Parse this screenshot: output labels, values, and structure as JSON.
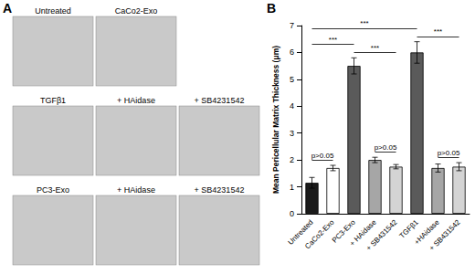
{
  "figure": {
    "panel_labels": [
      "A",
      "B"
    ],
    "image_rows": [
      [
        "Untreated",
        "CaCo2-Exo"
      ],
      [
        "TGFβ1",
        "+ HAidase",
        "+ SB4231542"
      ],
      [
        "PC3-Exo",
        "+ HAidase",
        "+ SB4231542"
      ]
    ]
  },
  "chart_data": {
    "type": "bar",
    "y_label": "Mean Pericellular Matrix Thickness (μm)",
    "categories": [
      "Untreated",
      "CaCo2-Exo",
      "PC3-Exo",
      "+ HAidase",
      "+ SB431542",
      "TGFβ1",
      "+HAidase",
      "+ SB431542"
    ],
    "values": [
      1.15,
      1.7,
      5.5,
      2.0,
      1.75,
      6.0,
      1.7,
      1.75
    ],
    "errors": [
      0.2,
      0.1,
      0.3,
      0.1,
      0.08,
      0.4,
      0.15,
      0.15
    ],
    "colors": [
      "#1a1a1a",
      "#ffffff",
      "#5a5a5a",
      "#a6a6a6",
      "#d4d4d4",
      "#5a5a5a",
      "#a6a6a6",
      "#d4d4d4"
    ],
    "ylim": [
      0,
      7
    ],
    "yticks": [
      0,
      1,
      2,
      3,
      4,
      5,
      6,
      7
    ],
    "grid": false,
    "annotations": [
      {
        "from": 0,
        "to": 1,
        "text": "p>0.05"
      },
      {
        "from": 3,
        "to": 4,
        "text": "p>0.05"
      },
      {
        "from": 6,
        "to": 7,
        "text": "p>0.05"
      },
      {
        "from": 2,
        "to": 4,
        "text": "***"
      },
      {
        "from": 5,
        "to": 7,
        "text": "***"
      },
      {
        "from": 0,
        "to": 2,
        "text": "***"
      },
      {
        "from": 0,
        "to": 5,
        "text": "***"
      }
    ]
  }
}
